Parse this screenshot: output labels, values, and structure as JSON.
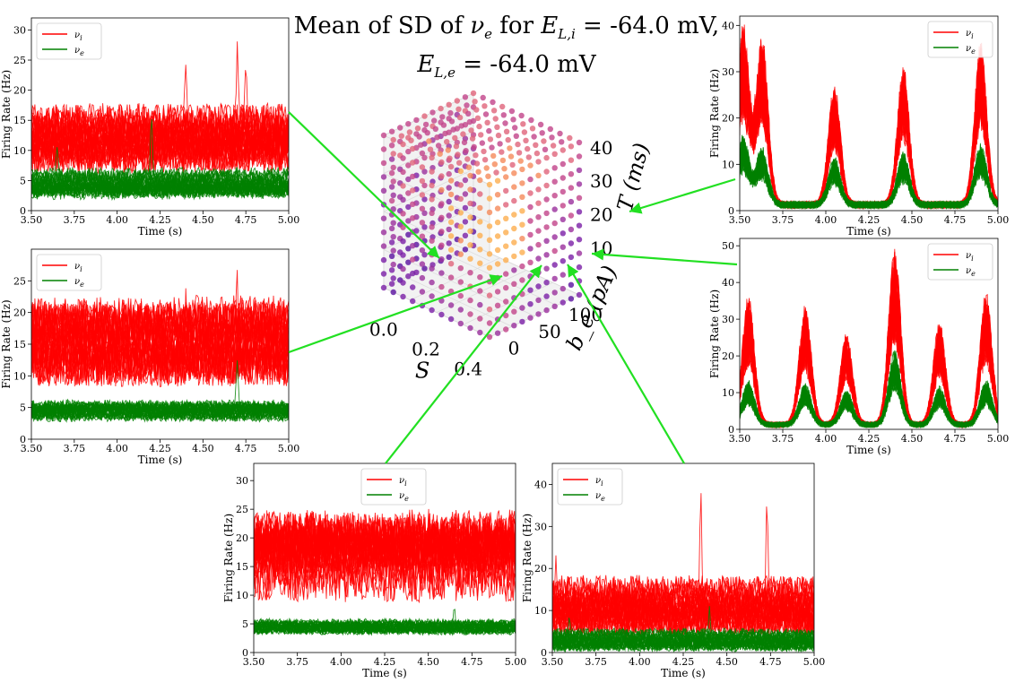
{
  "title": {
    "line1_prefix": "Mean of SD of ",
    "line1_var": "ν",
    "line1_sub": "e",
    "line1_mid": " for ",
    "line1_E": "E",
    "line1_E_sub": "L,i",
    "line1_val": " = -64.0 mV,",
    "line2_E": "E",
    "line2_E_sub": "L,e",
    "line2_val": " = -64.0 mV"
  },
  "colors": {
    "nu_i": "#ff0000",
    "nu_e": "#008000",
    "connector": "#22e022"
  },
  "chart_data": [
    {
      "id": "left-top",
      "type": "line",
      "xlabel": "Time (s)",
      "ylabel": "Firing Rate (Hz)",
      "xlim": [
        3.5,
        5.0
      ],
      "ylim": [
        0,
        32
      ],
      "xticks": [
        "3.50",
        "3.75",
        "4.00",
        "4.25",
        "4.50",
        "4.75",
        "5.00"
      ],
      "yticks": [
        "0",
        "5",
        "10",
        "15",
        "20",
        "25",
        "30"
      ],
      "legend": "top-left",
      "series": [
        {
          "name": "ν_i",
          "color": "#ff0000",
          "mean": 12,
          "spread": 4,
          "peaks": [
            [
              4.7,
              28.5
            ],
            [
              4.4,
              25.3
            ],
            [
              4.75,
              24.5
            ]
          ]
        },
        {
          "name": "ν_e",
          "color": "#008000",
          "mean": 4.5,
          "spread": 1.8,
          "peaks": [
            [
              4.2,
              15
            ],
            [
              3.65,
              10
            ]
          ]
        }
      ]
    },
    {
      "id": "left-bottom",
      "type": "line",
      "xlabel": "Time (s)",
      "ylabel": "Firing Rate (Hz)",
      "xlim": [
        3.5,
        5.0
      ],
      "ylim": [
        0,
        30
      ],
      "xticks": [
        "3.50",
        "3.75",
        "4.00",
        "4.25",
        "4.50",
        "4.75",
        "5.00"
      ],
      "yticks": [
        "0",
        "5",
        "10",
        "15",
        "20",
        "25"
      ],
      "legend": "top-left",
      "series": [
        {
          "name": "ν_i",
          "color": "#ff0000",
          "mean": 15.5,
          "spread": 5,
          "peaks": [
            [
              4.7,
              29
            ],
            [
              4.4,
              25
            ]
          ]
        },
        {
          "name": "ν_e",
          "color": "#008000",
          "mean": 4.5,
          "spread": 1.2,
          "peaks": [
            [
              4.7,
              12
            ]
          ]
        }
      ]
    },
    {
      "id": "right-top",
      "type": "line",
      "xlabel": "Time (s)",
      "ylabel": "Firing Rate (Hz)",
      "xlim": [
        3.5,
        5.0
      ],
      "ylim": [
        0,
        42
      ],
      "xticks": [
        "3.50",
        "3.75",
        "4.00",
        "4.25",
        "4.50",
        "4.75",
        "5.00"
      ],
      "yticks": [
        "0",
        "10",
        "20",
        "30",
        "40"
      ],
      "legend": "top-right",
      "series": [
        {
          "name": "ν_i",
          "color": "#ff0000",
          "bursts": [
            [
              3.52,
              39
            ],
            [
              3.63,
              36
            ],
            [
              4.05,
              26
            ],
            [
              4.45,
              30
            ],
            [
              4.9,
              35
            ]
          ]
        },
        {
          "name": "ν_e",
          "color": "#008000",
          "bursts": [
            [
              3.52,
              15
            ],
            [
              3.63,
              12
            ],
            [
              4.05,
              10
            ],
            [
              4.45,
              11
            ],
            [
              4.9,
              13
            ]
          ]
        }
      ]
    },
    {
      "id": "right-bottom",
      "type": "line",
      "xlabel": "Time (s)",
      "ylabel": "Firing Rate (Hz)",
      "xlim": [
        3.5,
        5.0
      ],
      "ylim": [
        0,
        52
      ],
      "xticks": [
        "3.50",
        "3.75",
        "4.00",
        "4.25",
        "4.50",
        "4.75",
        "5.00"
      ],
      "yticks": [
        "0",
        "10",
        "20",
        "30",
        "40",
        "50"
      ],
      "legend": "top-right",
      "series": [
        {
          "name": "ν_i",
          "color": "#ff0000",
          "bursts": [
            [
              3.55,
              35
            ],
            [
              3.88,
              32
            ],
            [
              4.12,
              25
            ],
            [
              4.4,
              48
            ],
            [
              4.66,
              28
            ],
            [
              4.93,
              36
            ]
          ]
        },
        {
          "name": "ν_e",
          "color": "#008000",
          "bursts": [
            [
              3.55,
              12
            ],
            [
              3.88,
              11
            ],
            [
              4.12,
              9
            ],
            [
              4.4,
              20
            ],
            [
              4.66,
              10
            ],
            [
              4.93,
              12
            ]
          ]
        }
      ]
    },
    {
      "id": "bottom-left",
      "type": "line",
      "xlabel": "Time (s)",
      "ylabel": "Firing Rate (Hz)",
      "xlim": [
        3.5,
        5.0
      ],
      "ylim": [
        0,
        33
      ],
      "xticks": [
        "3.50",
        "3.75",
        "4.00",
        "4.25",
        "4.50",
        "4.75",
        "5.00"
      ],
      "yticks": [
        "0",
        "5",
        "10",
        "15",
        "20",
        "25",
        "30"
      ],
      "legend": "top-center",
      "series": [
        {
          "name": "ν_i",
          "color": "#ff0000",
          "mean": 17,
          "spread": 5.5,
          "peaks": [
            [
              3.6,
              28
            ],
            [
              4.5,
              28
            ]
          ]
        },
        {
          "name": "ν_e",
          "color": "#008000",
          "mean": 4.5,
          "spread": 1.0,
          "peaks": [
            [
              4.65,
              8
            ]
          ]
        }
      ]
    },
    {
      "id": "bottom-right",
      "type": "line",
      "xlabel": "Time (s)",
      "ylabel": "Firing Rate (Hz)",
      "xlim": [
        3.5,
        5.0
      ],
      "ylim": [
        0,
        45
      ],
      "xticks": [
        "3.50",
        "3.75",
        "4.00",
        "4.25",
        "4.50",
        "4.75",
        "5.00"
      ],
      "yticks": [
        "0",
        "10",
        "20",
        "30",
        "40"
      ],
      "legend": "top-left",
      "series": [
        {
          "name": "ν_i",
          "color": "#ff0000",
          "mean": 11,
          "spread": 5,
          "peaks": [
            [
              4.35,
              38.5
            ],
            [
              4.73,
              40.5
            ],
            [
              3.52,
              25
            ],
            [
              3.85,
              22
            ]
          ]
        },
        {
          "name": "ν_e",
          "color": "#008000",
          "mean": 3,
          "spread": 2,
          "peaks": [
            [
              4.4,
              12
            ],
            [
              3.6,
              9
            ]
          ]
        }
      ]
    },
    {
      "id": "center-3d",
      "type": "scatter",
      "xlabel": "S",
      "ylabel": "b_e (pA)",
      "zlabel": "T (ms)",
      "xticks": [
        "0.0",
        "0.2",
        "0.4"
      ],
      "yticks": [
        "0",
        "50",
        "100"
      ],
      "zticks": [
        "10",
        "20",
        "30",
        "40"
      ],
      "grid": true
    }
  ]
}
